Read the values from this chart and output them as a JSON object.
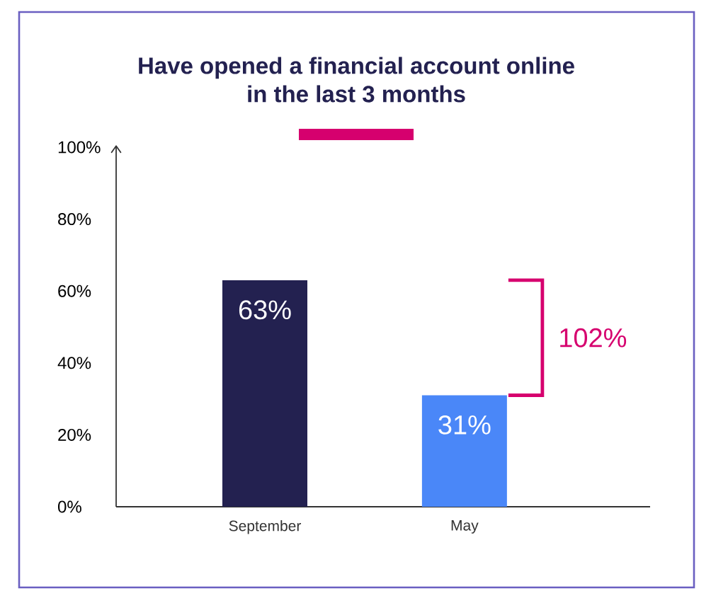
{
  "chart_data": {
    "type": "bar",
    "title": "Have opened a financial account online in the last 3 months",
    "categories": [
      "September",
      "May"
    ],
    "values": [
      63,
      31
    ],
    "colors": [
      "#232150",
      "#4a87f8"
    ],
    "value_labels": [
      "63%",
      "31%"
    ],
    "ylim": [
      0,
      100
    ],
    "yticks": [
      {
        "value": 0,
        "label": "0%"
      },
      {
        "value": 20,
        "label": "20%"
      },
      {
        "value": 40,
        "label": "40%"
      },
      {
        "value": 60,
        "label": "60%"
      },
      {
        "value": 80,
        "label": "80%"
      },
      {
        "value": 100,
        "label": "100%"
      }
    ],
    "annotations": [
      "102%"
    ]
  }
}
